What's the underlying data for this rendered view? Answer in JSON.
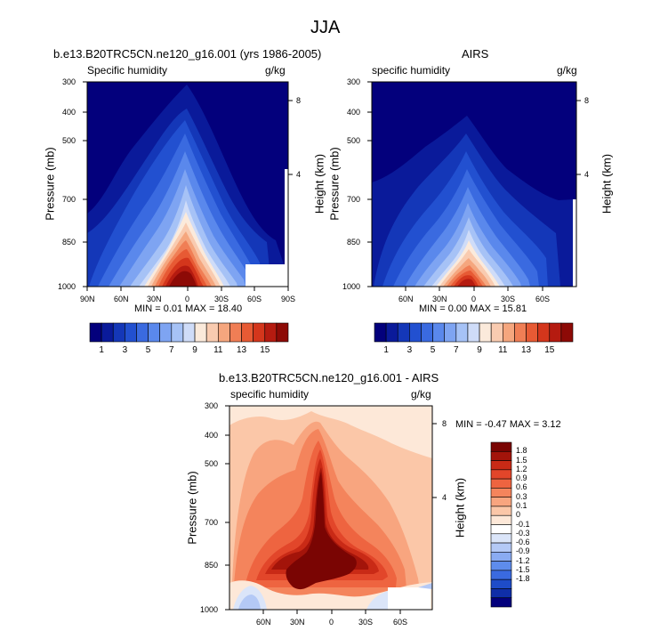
{
  "figure_title": "JJA",
  "colors": {
    "seq_palette": [
      "#03007c",
      "#0a1a9a",
      "#1437b8",
      "#2250d0",
      "#3a6ae0",
      "#5a88ec",
      "#7ea4f2",
      "#a6c2f6",
      "#cfdcf8",
      "#fbeadb",
      "#f9cbb0",
      "#f5a67e",
      "#f07e55",
      "#e75a34",
      "#d4361c",
      "#b51b10",
      "#8d0a06"
    ],
    "div_palette": [
      "#03007c",
      "#0f2ea8",
      "#1e4cc8",
      "#3a6ae0",
      "#5e8cec",
      "#8aabf2",
      "#b4c9f6",
      "#dbe5f9",
      "#ffffff",
      "#fde8d8",
      "#fbc7a8",
      "#f8a57f",
      "#f4845c",
      "#ee6440",
      "#e2462a",
      "#c92a16",
      "#a3140a",
      "#7a0503"
    ]
  },
  "chart_data": [
    {
      "id": "model",
      "type": "heatmap",
      "title": "b.e13.B20TRC5CN.ne120_g16.001 (yrs 1986-2005)",
      "variable": "Specific humidity",
      "units": "g/kg",
      "ylabel": "Pressure (mb)",
      "ylabel_right": "Height (km)",
      "y_ticks": [
        "300",
        "400",
        "500",
        "700",
        "850",
        "1000"
      ],
      "y_ticks_right": [
        "8",
        "4"
      ],
      "x_ticks": [
        "90N",
        "60N",
        "30N",
        "0",
        "30S",
        "60S",
        "90S"
      ],
      "stats": "MIN =  0.01  MAX = 18.40",
      "min": 0.01,
      "max": 18.4
    },
    {
      "id": "obs",
      "type": "heatmap",
      "title": "AIRS",
      "variable": "specific humidity",
      "units": "g/kg",
      "ylabel": "Pressure (mb)",
      "ylabel_right": "Height (km)",
      "y_ticks": [
        "300",
        "400",
        "500",
        "700",
        "850",
        "1000"
      ],
      "y_ticks_right": [
        "8",
        "4"
      ],
      "x_ticks": [
        "60N",
        "30N",
        "0",
        "30S",
        "60S"
      ],
      "stats": "MIN =  0.00  MAX = 15.81",
      "min": 0.0,
      "max": 15.81
    },
    {
      "id": "diff",
      "type": "heatmap",
      "title": "b.e13.B20TRC5CN.ne120_g16.001 - AIRS",
      "variable": "specific humidity",
      "units": "g/kg",
      "ylabel": "Pressure (mb)",
      "ylabel_right": "Height (km)",
      "y_ticks": [
        "300",
        "400",
        "500",
        "700",
        "850",
        "1000"
      ],
      "y_ticks_right": [
        "8",
        "4"
      ],
      "x_ticks": [
        "60N",
        "30N",
        "0",
        "30S",
        "60S"
      ],
      "stats": "MIN = -0.47  MAX =  3.12",
      "min": -0.47,
      "max": 3.12
    }
  ],
  "colorbar_top": {
    "labels": [
      "1",
      "3",
      "5",
      "7",
      "9",
      "11",
      "13",
      "15"
    ]
  },
  "colorbar_diff": {
    "labels": [
      "1.8",
      "1.5",
      "1.2",
      "0.9",
      "0.6",
      "0.3",
      "0.1",
      "0",
      "-0.1",
      "-0.3",
      "-0.6",
      "-0.9",
      "-1.2",
      "-1.5",
      "-1.8"
    ]
  }
}
